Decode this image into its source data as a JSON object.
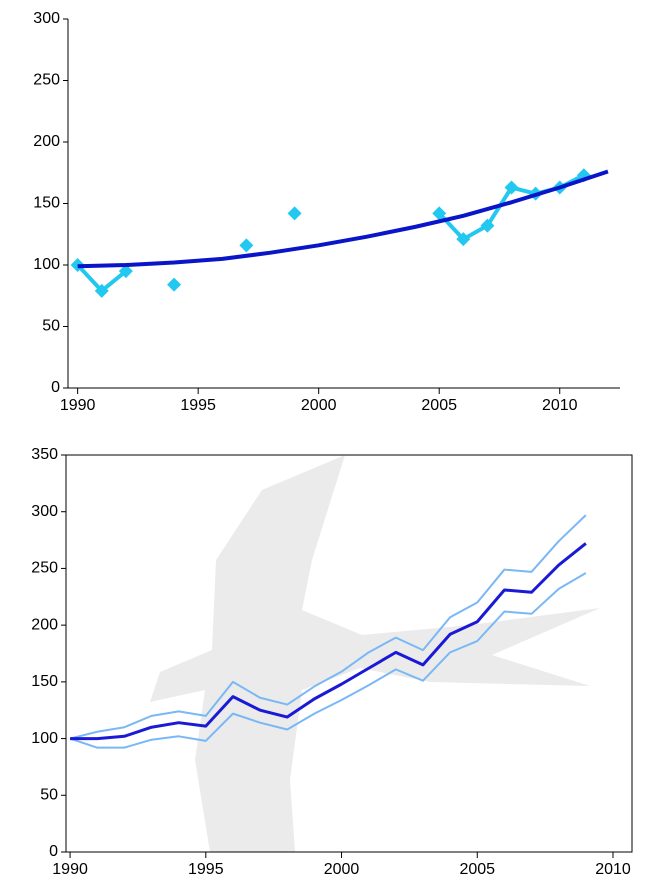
{
  "chart_data": [
    {
      "type": "line",
      "x": [
        1990,
        1991,
        1992,
        1993,
        1994,
        1995,
        1996,
        1997,
        1998,
        1999,
        2000,
        2001,
        2002,
        2003,
        2004,
        2005,
        2006,
        2007,
        2008,
        2009,
        2010,
        2011
      ],
      "series": [
        {
          "color": "#22c8f0",
          "marker": "diamond",
          "values": [
            100,
            79,
            95,
            null,
            84,
            null,
            null,
            116,
            null,
            142,
            null,
            null,
            null,
            null,
            null,
            142,
            121,
            132,
            163,
            158,
            163,
            173
          ]
        },
        {
          "color": "#0a14c8",
          "x": [
            1990,
            1992,
            1994,
            1996,
            1998,
            2000,
            2002,
            2004,
            2006,
            2008,
            2010,
            2012
          ],
          "values": [
            99,
            100,
            102,
            105,
            110,
            116,
            123,
            131,
            140,
            151,
            163,
            176
          ]
        }
      ],
      "xlim": [
        1989.6,
        2012.5
      ],
      "xticks": [
        1990,
        1995,
        2000,
        2005,
        2010
      ],
      "ylim": [
        0,
        300
      ],
      "yticks": [
        0,
        50,
        100,
        150,
        200,
        250,
        300
      ],
      "frame": false
    },
    {
      "type": "line",
      "x": [
        1990,
        1991,
        1992,
        1993,
        1994,
        1995,
        1996,
        1997,
        1998,
        1999,
        2000,
        2001,
        2002,
        2003,
        2004,
        2005,
        2006,
        2007,
        2008,
        2009
      ],
      "series": [
        {
          "color": "#7ab8f5",
          "values": [
            100,
            106,
            110,
            120,
            124,
            120,
            150,
            136,
            130,
            146,
            159,
            176,
            189,
            178,
            207,
            220,
            249,
            247,
            274,
            297
          ]
        },
        {
          "color": "#7ab8f5",
          "values": [
            100,
            92,
            92,
            99,
            102,
            98,
            122,
            114,
            108,
            122,
            134,
            147,
            161,
            151,
            176,
            186,
            212,
            210,
            232,
            246
          ]
        },
        {
          "color": "#1a1ad6",
          "values": [
            100,
            100,
            102,
            110,
            114,
            111,
            137,
            125,
            119,
            135,
            148,
            162,
            176,
            165,
            192,
            203,
            231,
            229,
            253,
            272
          ]
        }
      ],
      "xlim": [
        1989.85,
        2010.7
      ],
      "xticks": [
        1990,
        1995,
        2000,
        2005,
        2010
      ],
      "ylim": [
        0,
        350
      ],
      "yticks": [
        0,
        50,
        100,
        150,
        200,
        250,
        300,
        350
      ],
      "frame": true
    }
  ]
}
